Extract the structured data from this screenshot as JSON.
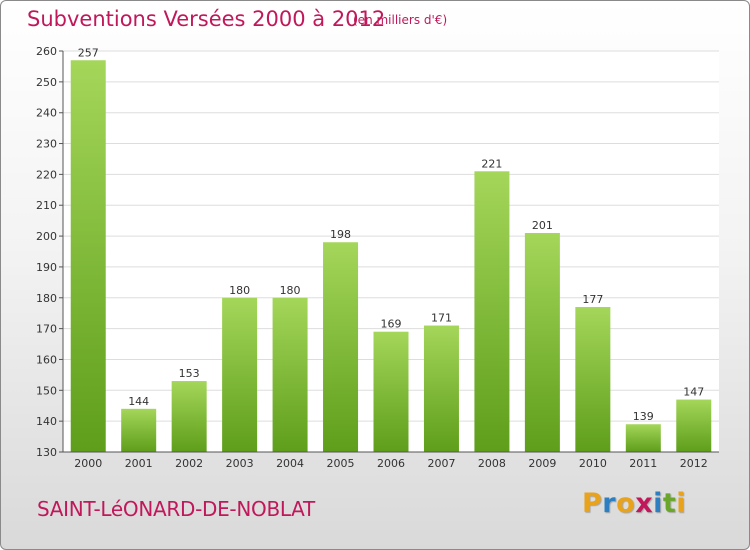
{
  "header": {
    "title": "Subventions Versées 2000 à 2012",
    "subtitle": "(en milliers d'€)"
  },
  "footer": {
    "commune": "SAINT-LéONARD-DE-NOBLAT",
    "brand_letters": [
      "P",
      "r",
      "o",
      "x",
      "i",
      "t",
      "i"
    ],
    "brand_colors": [
      "#e8a21c",
      "#2e7fc2",
      "#e8a21c",
      "#c0185a",
      "#2e7fc2",
      "#6aa62a",
      "#e8a21c"
    ]
  },
  "colors": {
    "bar_light": "#a4d65a",
    "bar_dark": "#5e9e1a",
    "title": "#c0185a"
  },
  "chart_data": {
    "type": "bar",
    "title": "Subventions Versées 2000 à 2012",
    "subtitle": "(en milliers d'€)",
    "categories": [
      "2000",
      "2001",
      "2002",
      "2003",
      "2004",
      "2005",
      "2006",
      "2007",
      "2008",
      "2009",
      "2010",
      "2011",
      "2012"
    ],
    "values": [
      257,
      144,
      153,
      180,
      180,
      198,
      169,
      171,
      221,
      201,
      177,
      139,
      147
    ],
    "ylim": [
      130,
      260
    ],
    "yticks": [
      130,
      140,
      150,
      160,
      170,
      180,
      190,
      200,
      210,
      220,
      230,
      240,
      250,
      260
    ],
    "grid": true
  }
}
